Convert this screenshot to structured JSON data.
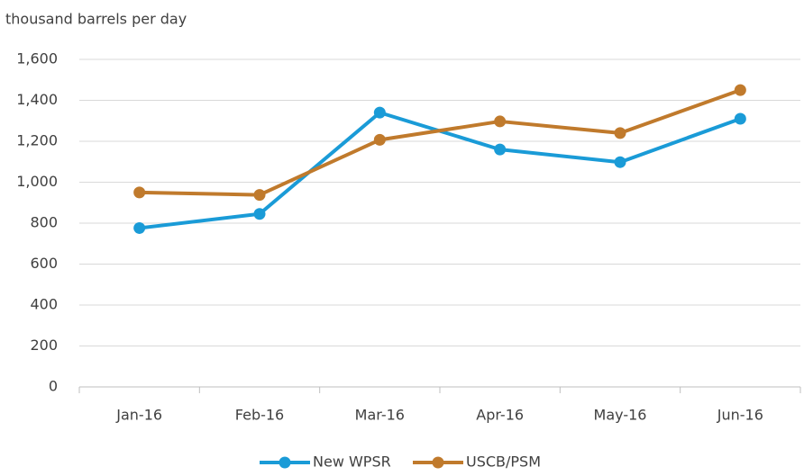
{
  "chart_data": {
    "type": "line",
    "y_label": "thousand barrels per day",
    "categories": [
      "Jan-16",
      "Feb-16",
      "Mar-16",
      "Apr-16",
      "May-16",
      "Jun-16"
    ],
    "series": [
      {
        "name": "New WPSR",
        "color": "#1a9bd7",
        "values": [
          776,
          845,
          1340,
          1160,
          1098,
          1310
        ]
      },
      {
        "name": "USCB/PSM",
        "color": "#c07a2c",
        "values": [
          950,
          938,
          1207,
          1297,
          1240,
          1450
        ]
      }
    ],
    "ylim": [
      0,
      1600
    ],
    "yticks": [
      0,
      200,
      400,
      600,
      800,
      {
        "value": 1000,
        "label": "1,000"
      },
      {
        "value": 1200,
        "label": "1,200"
      },
      {
        "value": 1400,
        "label": "1,400"
      },
      {
        "value": 1600,
        "label": "1,600"
      }
    ],
    "grid": true,
    "legend": "bottom"
  }
}
